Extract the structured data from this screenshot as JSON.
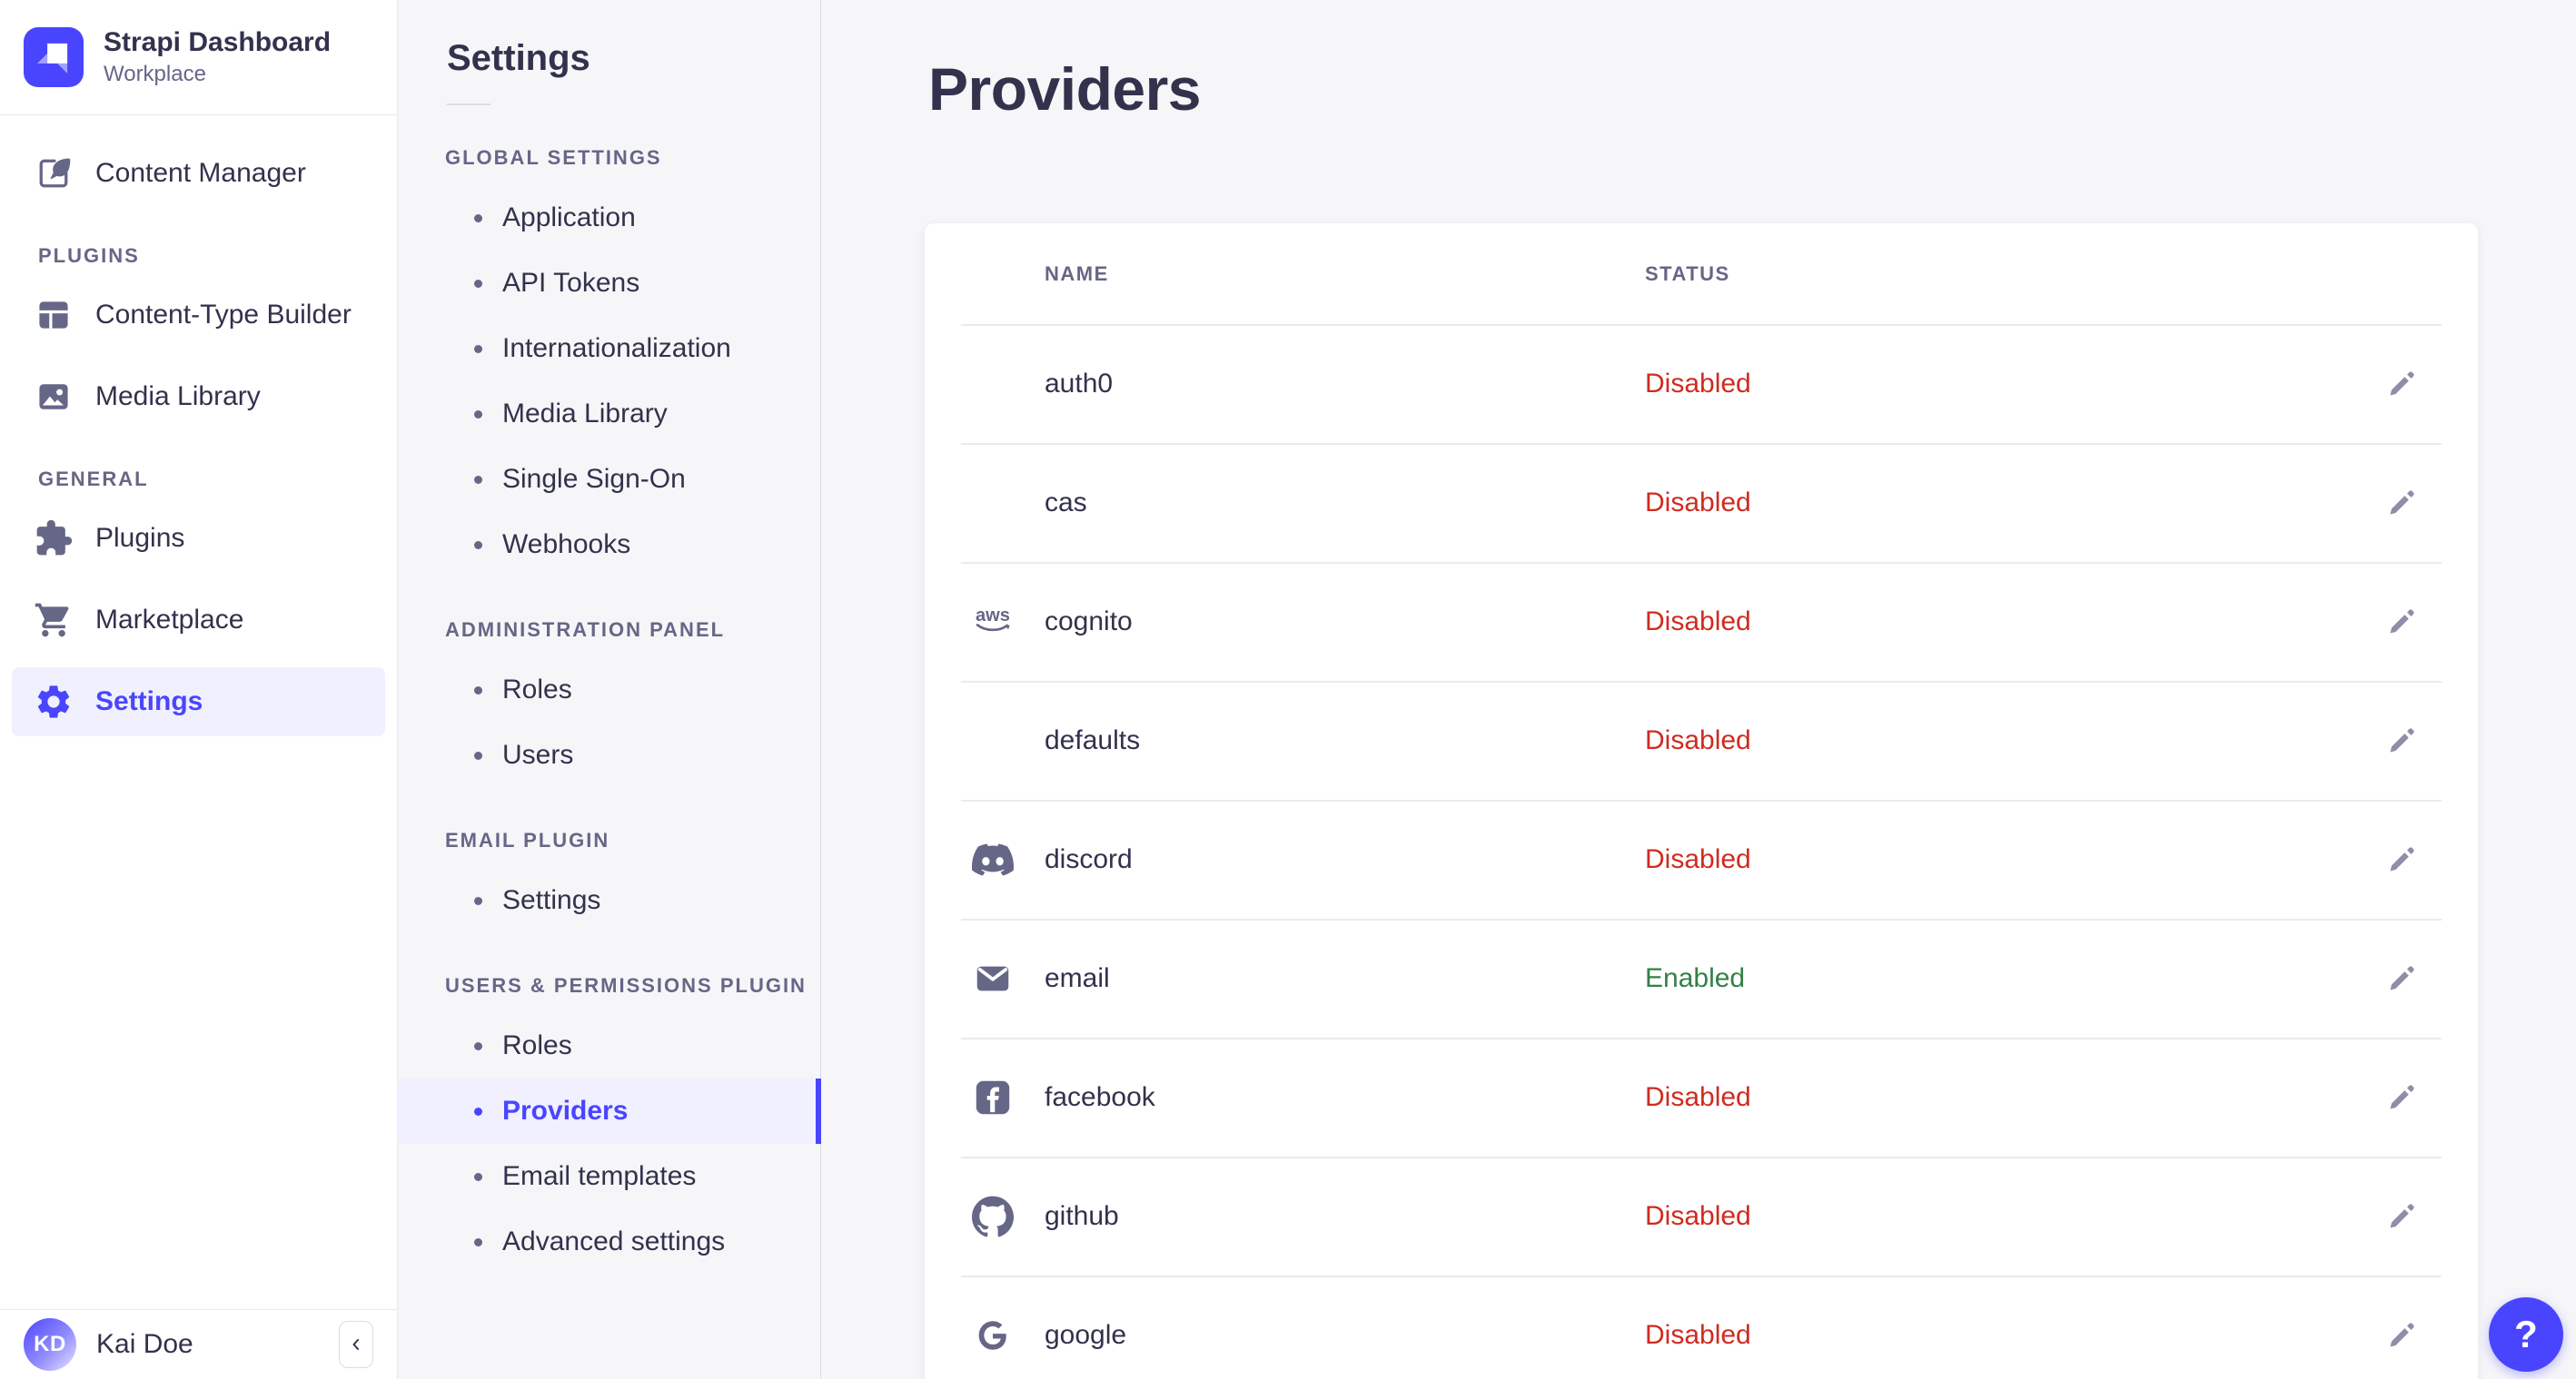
{
  "brand": {
    "title": "Strapi Dashboard",
    "subtitle": "Workplace"
  },
  "sidebar": {
    "top_items": [
      {
        "label": "Content Manager",
        "icon": "feather-pen-icon"
      }
    ],
    "sections": [
      {
        "label": "PLUGINS",
        "items": [
          {
            "label": "Content-Type Builder",
            "icon": "layout-grid-icon"
          },
          {
            "label": "Media Library",
            "icon": "picture-icon"
          }
        ]
      },
      {
        "label": "GENERAL",
        "items": [
          {
            "label": "Plugins",
            "icon": "puzzle-piece-icon"
          },
          {
            "label": "Marketplace",
            "icon": "shopping-cart-icon"
          },
          {
            "label": "Settings",
            "icon": "gear-icon"
          }
        ]
      }
    ],
    "user": {
      "initials": "KD",
      "name": "Kai Doe"
    }
  },
  "subnav": {
    "title": "Settings",
    "sections": [
      {
        "label": "GLOBAL SETTINGS",
        "items": [
          "Application",
          "API Tokens",
          "Internationalization",
          "Media Library",
          "Single Sign-On",
          "Webhooks"
        ]
      },
      {
        "label": "ADMINISTRATION PANEL",
        "items": [
          "Roles",
          "Users"
        ]
      },
      {
        "label": "EMAIL PLUGIN",
        "items": [
          "Settings"
        ]
      },
      {
        "label": "USERS & PERMISSIONS PLUGIN",
        "items": [
          "Roles",
          "Providers",
          "Email templates",
          "Advanced settings"
        ]
      }
    ]
  },
  "main": {
    "title": "Providers",
    "table": {
      "columns": [
        "NAME",
        "STATUS"
      ],
      "rows": [
        {
          "name": "auth0",
          "icon": null,
          "status": "Disabled"
        },
        {
          "name": "cas",
          "icon": null,
          "status": "Disabled"
        },
        {
          "name": "cognito",
          "icon": "aws",
          "status": "Disabled"
        },
        {
          "name": "defaults",
          "icon": null,
          "status": "Disabled"
        },
        {
          "name": "discord",
          "icon": "discord",
          "status": "Disabled"
        },
        {
          "name": "email",
          "icon": "email",
          "status": "Enabled"
        },
        {
          "name": "facebook",
          "icon": "facebook",
          "status": "Disabled"
        },
        {
          "name": "github",
          "icon": "github",
          "status": "Disabled"
        },
        {
          "name": "google",
          "icon": "google",
          "status": "Disabled"
        }
      ]
    }
  },
  "help": {
    "label": "?"
  },
  "colors": {
    "accent": "#4945ff",
    "accent_bg": "#f0f0ff",
    "status_enabled": "#328048",
    "status_disabled": "#d02b20"
  }
}
